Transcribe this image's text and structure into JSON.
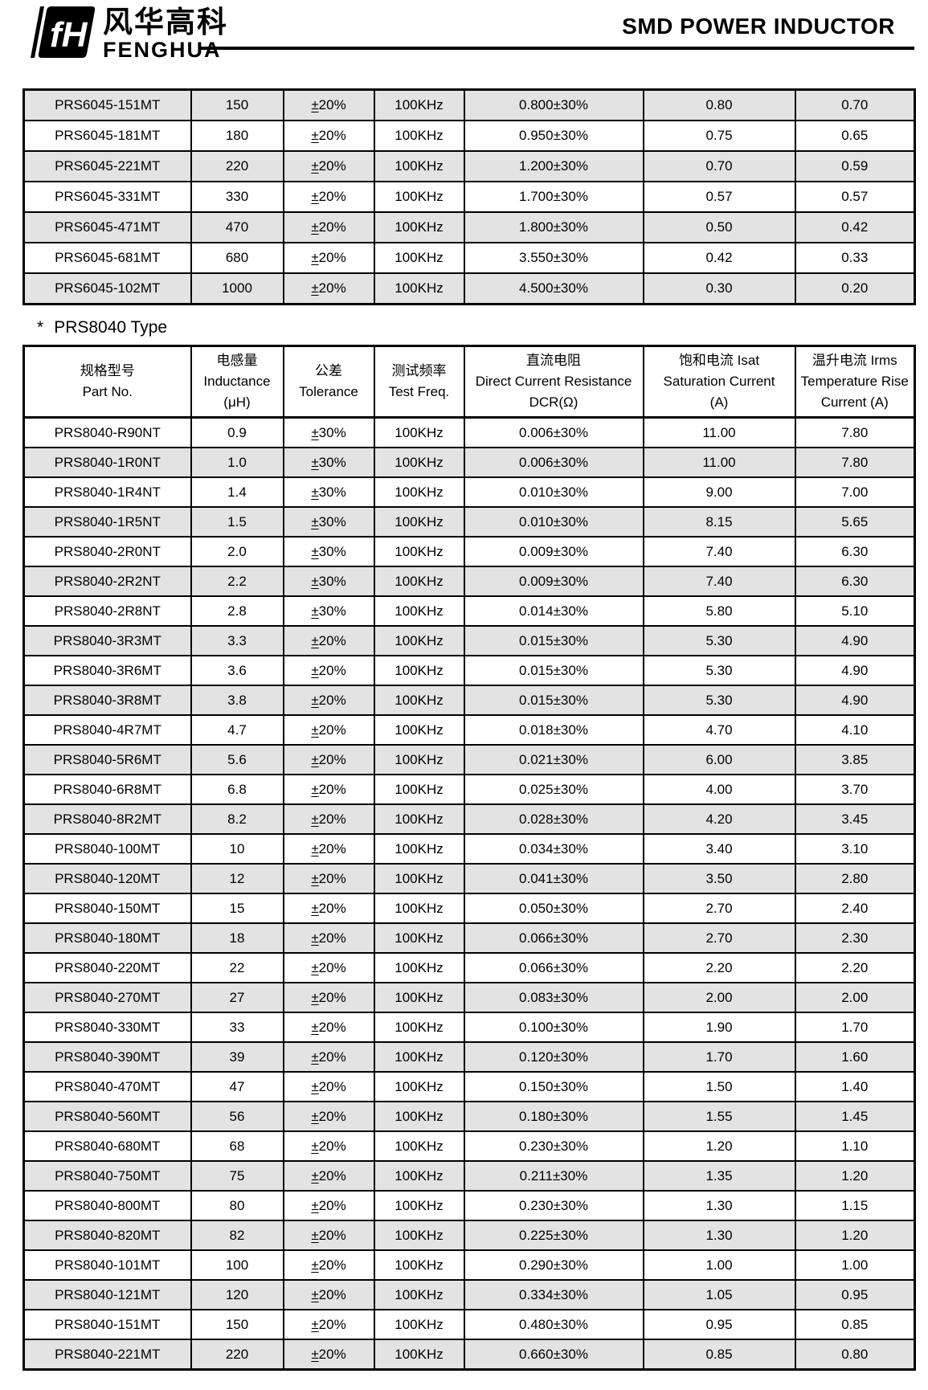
{
  "header": {
    "logo": {
      "symbol": "fH",
      "registered": "®",
      "brand_zh": "风华高科",
      "brand_en": "FENGHUA"
    },
    "title": "SMD POWER INDUCTOR"
  },
  "section_heading": {
    "marker": "*",
    "text": "PRS8040 Type"
  },
  "prs6045_table": {
    "rows": [
      [
        "PRS6045-151MT",
        "150",
        "±20%",
        "100KHz",
        "0.800±30%",
        "0.80",
        "0.70"
      ],
      [
        "PRS6045-181MT",
        "180",
        "±20%",
        "100KHz",
        "0.950±30%",
        "0.75",
        "0.65"
      ],
      [
        "PRS6045-221MT",
        "220",
        "±20%",
        "100KHz",
        "1.200±30%",
        "0.70",
        "0.59"
      ],
      [
        "PRS6045-331MT",
        "330",
        "±20%",
        "100KHz",
        "1.700±30%",
        "0.57",
        "0.57"
      ],
      [
        "PRS6045-471MT",
        "470",
        "±20%",
        "100KHz",
        "1.800±30%",
        "0.50",
        "0.42"
      ],
      [
        "PRS6045-681MT",
        "680",
        "±20%",
        "100KHz",
        "3.550±30%",
        "0.42",
        "0.33"
      ],
      [
        "PRS6045-102MT",
        "1000",
        "±20%",
        "100KHz",
        "4.500±30%",
        "0.30",
        "0.20"
      ]
    ]
  },
  "prs8040_table": {
    "columns": [
      {
        "lines": [
          "规格型号",
          "Part No."
        ]
      },
      {
        "lines": [
          "电感量",
          "Inductance",
          "(μH)"
        ]
      },
      {
        "lines": [
          "公差",
          "Tolerance"
        ]
      },
      {
        "lines": [
          "测试频率",
          "Test Freq."
        ]
      },
      {
        "lines": [
          "直流电阻",
          "Direct Current Resistance",
          "DCR(Ω)"
        ]
      },
      {
        "lines": [
          "饱和电流  Isat",
          "Saturation Current",
          "(A)"
        ]
      },
      {
        "lines": [
          "温升电流  Irms",
          "Temperature Rise",
          "Current (A)"
        ]
      }
    ],
    "rows": [
      [
        "PRS8040-R90NT",
        "0.9",
        "±30%",
        "100KHz",
        "0.006±30%",
        "11.00",
        "7.80"
      ],
      [
        "PRS8040-1R0NT",
        "1.0",
        "±30%",
        "100KHz",
        "0.006±30%",
        "11.00",
        "7.80"
      ],
      [
        "PRS8040-1R4NT",
        "1.4",
        "±30%",
        "100KHz",
        "0.010±30%",
        "9.00",
        "7.00"
      ],
      [
        "PRS8040-1R5NT",
        "1.5",
        "±30%",
        "100KHz",
        "0.010±30%",
        "8.15",
        "5.65"
      ],
      [
        "PRS8040-2R0NT",
        "2.0",
        "±30%",
        "100KHz",
        "0.009±30%",
        "7.40",
        "6.30"
      ],
      [
        "PRS8040-2R2NT",
        "2.2",
        "±30%",
        "100KHz",
        "0.009±30%",
        "7.40",
        "6.30"
      ],
      [
        "PRS8040-2R8NT",
        "2.8",
        "±30%",
        "100KHz",
        "0.014±30%",
        "5.80",
        "5.10"
      ],
      [
        "PRS8040-3R3MT",
        "3.3",
        "±20%",
        "100KHz",
        "0.015±30%",
        "5.30",
        "4.90"
      ],
      [
        "PRS8040-3R6MT",
        "3.6",
        "±20%",
        "100KHz",
        "0.015±30%",
        "5.30",
        "4.90"
      ],
      [
        "PRS8040-3R8MT",
        "3.8",
        "±20%",
        "100KHz",
        "0.015±30%",
        "5.30",
        "4.90"
      ],
      [
        "PRS8040-4R7MT",
        "4.7",
        "±20%",
        "100KHz",
        "0.018±30%",
        "4.70",
        "4.10"
      ],
      [
        "PRS8040-5R6MT",
        "5.6",
        "±20%",
        "100KHz",
        "0.021±30%",
        "6.00",
        "3.85"
      ],
      [
        "PRS8040-6R8MT",
        "6.8",
        "±20%",
        "100KHz",
        "0.025±30%",
        "4.00",
        "3.70"
      ],
      [
        "PRS8040-8R2MT",
        "8.2",
        "±20%",
        "100KHz",
        "0.028±30%",
        "4.20",
        "3.45"
      ],
      [
        "PRS8040-100MT",
        "10",
        "±20%",
        "100KHz",
        "0.034±30%",
        "3.40",
        "3.10"
      ],
      [
        "PRS8040-120MT",
        "12",
        "±20%",
        "100KHz",
        "0.041±30%",
        "3.50",
        "2.80"
      ],
      [
        "PRS8040-150MT",
        "15",
        "±20%",
        "100KHz",
        "0.050±30%",
        "2.70",
        "2.40"
      ],
      [
        "PRS8040-180MT",
        "18",
        "±20%",
        "100KHz",
        "0.066±30%",
        "2.70",
        "2.30"
      ],
      [
        "PRS8040-220MT",
        "22",
        "±20%",
        "100KHz",
        "0.066±30%",
        "2.20",
        "2.20"
      ],
      [
        "PRS8040-270MT",
        "27",
        "±20%",
        "100KHz",
        "0.083±30%",
        "2.00",
        "2.00"
      ],
      [
        "PRS8040-330MT",
        "33",
        "±20%",
        "100KHz",
        "0.100±30%",
        "1.90",
        "1.70"
      ],
      [
        "PRS8040-390MT",
        "39",
        "±20%",
        "100KHz",
        "0.120±30%",
        "1.70",
        "1.60"
      ],
      [
        "PRS8040-470MT",
        "47",
        "±20%",
        "100KHz",
        "0.150±30%",
        "1.50",
        "1.40"
      ],
      [
        "PRS8040-560MT",
        "56",
        "±20%",
        "100KHz",
        "0.180±30%",
        "1.55",
        "1.45"
      ],
      [
        "PRS8040-680MT",
        "68",
        "±20%",
        "100KHz",
        "0.230±30%",
        "1.20",
        "1.10"
      ],
      [
        "PRS8040-750MT",
        "75",
        "±20%",
        "100KHz",
        "0.211±30%",
        "1.35",
        "1.20"
      ],
      [
        "PRS8040-800MT",
        "80",
        "±20%",
        "100KHz",
        "0.230±30%",
        "1.30",
        "1.15"
      ],
      [
        "PRS8040-820MT",
        "82",
        "±20%",
        "100KHz",
        "0.225±30%",
        "1.30",
        "1.20"
      ],
      [
        "PRS8040-101MT",
        "100",
        "±20%",
        "100KHz",
        "0.290±30%",
        "1.00",
        "1.00"
      ],
      [
        "PRS8040-121MT",
        "120",
        "±20%",
        "100KHz",
        "0.334±30%",
        "1.05",
        "0.95"
      ],
      [
        "PRS8040-151MT",
        "150",
        "±20%",
        "100KHz",
        "0.480±30%",
        "0.95",
        "0.85"
      ],
      [
        "PRS8040-221MT",
        "220",
        "±20%",
        "100KHz",
        "0.660±30%",
        "0.85",
        "0.80"
      ]
    ]
  },
  "colors": {
    "stripe": "#e3e3e3",
    "border": "#000000",
    "text": "#000000"
  }
}
